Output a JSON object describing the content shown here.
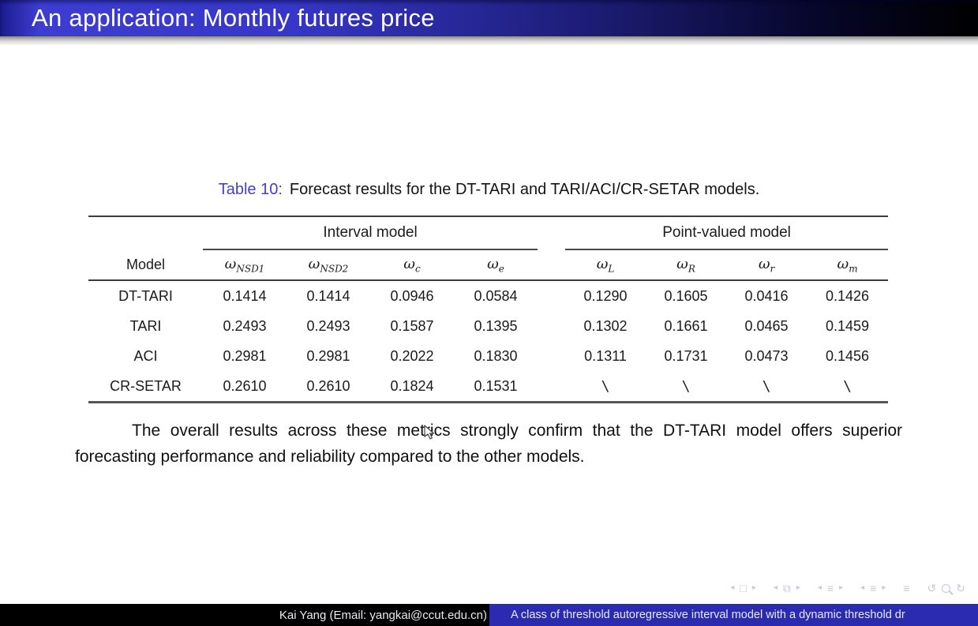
{
  "slide": {
    "title": "An application: Monthly futures price"
  },
  "caption": {
    "label": "Table 10:",
    "text": "Forecast results for the DT-TARI and TARI/ACI/CR-SETAR models."
  },
  "table": {
    "model_header": "Model",
    "group_headers": [
      "Interval model",
      "Point-valued model"
    ],
    "col_headers": [
      {
        "symbol": "ω",
        "sub": "NSD1"
      },
      {
        "symbol": "ω",
        "sub": "NSD2"
      },
      {
        "symbol": "ω",
        "sub": "c"
      },
      {
        "symbol": "ω",
        "sub": "e"
      },
      {
        "symbol": "ω",
        "sub": "L"
      },
      {
        "symbol": "ω",
        "sub": "R"
      },
      {
        "symbol": "ω",
        "sub": "r"
      },
      {
        "symbol": "ω",
        "sub": "m"
      }
    ],
    "rows": [
      {
        "model": "DT-TARI",
        "values": [
          "0.1414",
          "0.1414",
          "0.0946",
          "0.0584",
          "0.1290",
          "0.1605",
          "0.0416",
          "0.1426"
        ]
      },
      {
        "model": "TARI",
        "values": [
          "0.2493",
          "0.2493",
          "0.1587",
          "0.1395",
          "0.1302",
          "0.1661",
          "0.0465",
          "0.1459"
        ]
      },
      {
        "model": "ACI",
        "values": [
          "0.2981",
          "0.2981",
          "0.2022",
          "0.1830",
          "0.1311",
          "0.1731",
          "0.0473",
          "0.1456"
        ]
      },
      {
        "model": "CR-SETAR",
        "values": [
          "0.2610",
          "0.2610",
          "0.1824",
          "0.1531",
          "\\",
          "\\",
          "\\",
          "\\"
        ]
      }
    ]
  },
  "paragraph": "The overall results across these metrics strongly confirm that the DT-TARI model offers superior forecasting performance and reliability compared to the other models.",
  "footer": {
    "author": "Kai Yang (Email: yangkai@ccut.edu.cn)",
    "paper_title": "A class of threshold autoregressive interval model with a dynamic threshold dr"
  },
  "nav": {
    "glyphs": {
      "left-arrow-icon": "◂",
      "right-arrow-icon": "▸",
      "slide-icon": "□",
      "frame-icon": "⧉",
      "section-icon": "≡",
      "subsection-icon": "≡",
      "appendix-icon": "≡",
      "back-icon": "↺",
      "forward-icon": "↻"
    },
    "groups": [
      [
        "left-arrow-icon",
        "slide-icon",
        "right-arrow-icon"
      ],
      [
        "left-arrow-icon",
        "frame-icon",
        "right-arrow-icon"
      ],
      [
        "left-arrow-icon",
        "section-icon",
        "right-arrow-icon"
      ],
      [
        "left-arrow-icon",
        "subsection-icon",
        "right-arrow-icon"
      ],
      [
        "appendix-icon"
      ],
      [
        "back-icon",
        "magnifier-icon",
        "forward-icon"
      ]
    ]
  },
  "colors": {
    "title_bar_blue": "#3636c8",
    "caption_blue": "#4343bd",
    "footer_blue": "#2b2bb0",
    "nav_icon": "#c7c7de"
  }
}
